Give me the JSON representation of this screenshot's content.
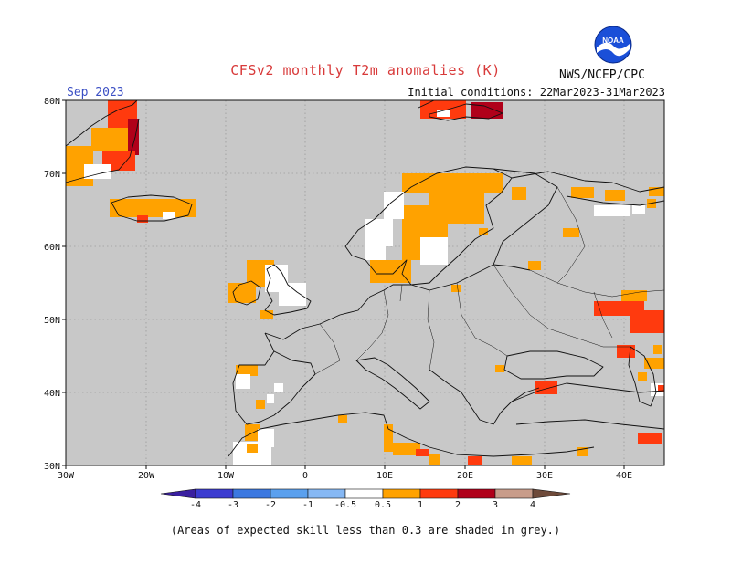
{
  "title": "CFSv2 monthly T2m anomalies (K)",
  "month": "Sep 2023",
  "initial_conditions": "Initial conditions: 22Mar2023-31Mar2023",
  "agency": "NWS/NCEP/CPC",
  "logo_text": "NOAA",
  "footnote": "(Areas of expected skill less than 0.3 are shaded in grey.)",
  "axes": {
    "lon_labels": [
      "30W",
      "20W",
      "10W",
      "0",
      "10E",
      "20E",
      "30E",
      "40E"
    ],
    "lat_labels": [
      "80N",
      "70N",
      "60N",
      "50N",
      "40N",
      "30N"
    ]
  },
  "colorbar": {
    "labels": [
      "-4",
      "-3",
      "-2",
      "-1",
      "-0.5",
      "0.5",
      "1",
      "2",
      "3",
      "4"
    ],
    "colors": [
      "#3a1fa0",
      "#3b3bd0",
      "#3b78e0",
      "#5aa0ee",
      "#86b8f4",
      "#ffffff",
      "#ffa200",
      "#ff3a0e",
      "#b0001a",
      "#c89c8a",
      "#6e4a3a"
    ]
  },
  "colors": {
    "skill_mask_grey": "#c8c8c8",
    "land_nonmask": "#ffffff",
    "title_red": "#d83a3a",
    "month_blue": "#3b4fc4"
  }
}
